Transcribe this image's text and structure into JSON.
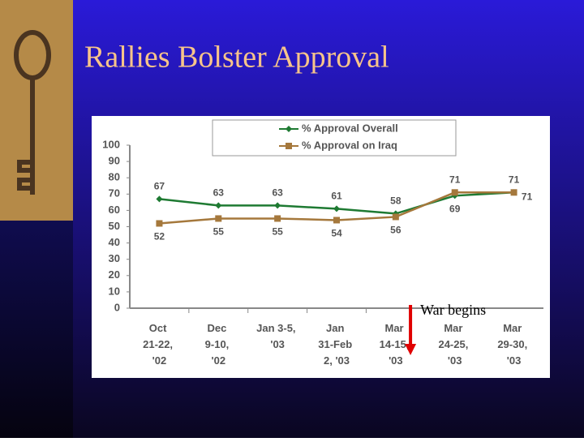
{
  "chart_data": {
    "type": "line",
    "title": "Rallies Bolster Approval",
    "categories": [
      "Oct 21-22, '02",
      "Dec 9-10, '02",
      "Jan 3-5, '03",
      "Jan 31-Feb 2, '03",
      "Mar 14-15, '03",
      "Mar 24-25, '03",
      "Mar 29-30, '03"
    ],
    "series": [
      {
        "name": "% Approval Overall",
        "color": "#1e7a32",
        "marker": "diamond",
        "values": [
          67,
          63,
          63,
          61,
          58,
          69,
          71
        ]
      },
      {
        "name": "% Approval on Iraq",
        "color": "#a5783c",
        "marker": "square",
        "values": [
          52,
          55,
          55,
          54,
          56,
          71,
          71
        ]
      }
    ],
    "ylim": [
      0,
      100
    ],
    "yticks": [
      0,
      10,
      20,
      30,
      40,
      50,
      60,
      70,
      80,
      90,
      100
    ],
    "legend": "top",
    "annotations": [
      {
        "text": "War begins",
        "category": 4
      }
    ]
  }
}
